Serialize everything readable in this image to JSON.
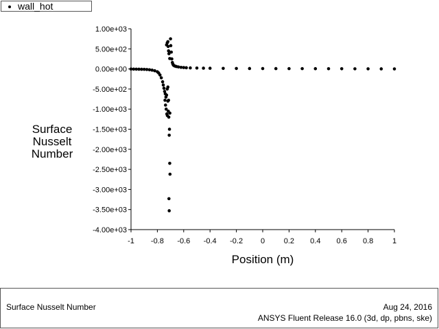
{
  "legend": {
    "label": "wall_hot"
  },
  "footer": {
    "title": "Surface Nusselt Number",
    "date": "Aug 24, 2016",
    "release": "ANSYS Fluent Release 16.0 (3d, dp, pbns, ske)"
  },
  "chart_data": {
    "type": "scatter",
    "title": "",
    "xlabel": "Position (m)",
    "ylabel_lines": [
      "Surface",
      "Nusselt",
      "Number"
    ],
    "xlim": [
      -1,
      1
    ],
    "ylim": [
      -4000,
      1000
    ],
    "xticks": [
      -1,
      -0.8,
      -0.6,
      -0.4,
      -0.2,
      0,
      0.2,
      0.4,
      0.6,
      0.8,
      1
    ],
    "xtick_labels": [
      "-1",
      "-0.8",
      "-0.6",
      "-0.4",
      "-0.2",
      "0",
      "0.2",
      "0.4",
      "0.6",
      "0.8",
      "1"
    ],
    "yticks": [
      1000,
      500,
      0,
      -500,
      -1000,
      -1500,
      -2000,
      -2500,
      -3000,
      -3500,
      -4000
    ],
    "ytick_labels": [
      "1.00e+03",
      "5.00e+02",
      "0.00e+00",
      "-5.00e+02",
      "-1.00e+03",
      "-1.50e+03",
      "-2.00e+03",
      "-2.50e+03",
      "-3.00e+03",
      "-3.50e+03",
      "-4.00e+03"
    ],
    "grid": false,
    "legend_position": "top-left",
    "series": [
      {
        "name": "wall_hot",
        "color": "#000000",
        "points": [
          [
            -1.0,
            -2
          ],
          [
            -0.98,
            -4
          ],
          [
            -0.96,
            -5
          ],
          [
            -0.94,
            -6
          ],
          [
            -0.92,
            -8
          ],
          [
            -0.9,
            -10
          ],
          [
            -0.88,
            -14
          ],
          [
            -0.86,
            -20
          ],
          [
            -0.84,
            -30
          ],
          [
            -0.82,
            -45
          ],
          [
            -0.8,
            -70
          ],
          [
            -0.79,
            -100
          ],
          [
            -0.78,
            -150
          ],
          [
            -0.77,
            -220
          ],
          [
            -0.76,
            -320
          ],
          [
            -0.755,
            -400
          ],
          [
            -0.75,
            -480
          ],
          [
            -0.745,
            -560
          ],
          [
            -0.74,
            -620
          ],
          [
            -0.735,
            -700
          ],
          [
            -0.73,
            -650
          ],
          [
            -0.725,
            -500
          ],
          [
            -0.72,
            -450
          ],
          [
            -0.742,
            -780
          ],
          [
            -0.738,
            -900
          ],
          [
            -0.733,
            -1000
          ],
          [
            -0.728,
            -1120
          ],
          [
            -0.724,
            -1160
          ],
          [
            -0.72,
            -800
          ],
          [
            -0.717,
            -1050
          ],
          [
            -0.713,
            -1200
          ],
          [
            -0.71,
            -1650
          ],
          [
            -0.708,
            -1500
          ],
          [
            -0.706,
            -2350
          ],
          [
            -0.704,
            -2620
          ],
          [
            -0.712,
            -3230
          ],
          [
            -0.71,
            -3530
          ],
          [
            -0.715,
            -780
          ],
          [
            -0.705,
            -1100
          ],
          [
            -0.73,
            600
          ],
          [
            -0.725,
            650
          ],
          [
            -0.72,
            680
          ],
          [
            -0.718,
            560
          ],
          [
            -0.715,
            450
          ],
          [
            -0.712,
            380
          ],
          [
            -0.706,
            260
          ],
          [
            -0.7,
            750
          ],
          [
            -0.698,
            580
          ],
          [
            -0.694,
            420
          ],
          [
            -0.69,
            250
          ],
          [
            -0.686,
            160
          ],
          [
            -0.682,
            120
          ],
          [
            -0.678,
            95
          ],
          [
            -0.672,
            80
          ],
          [
            -0.665,
            70
          ],
          [
            -0.655,
            60
          ],
          [
            -0.64,
            50
          ],
          [
            -0.62,
            40
          ],
          [
            -0.6,
            35
          ],
          [
            -0.58,
            30
          ],
          [
            -0.55,
            26
          ],
          [
            -0.5,
            22
          ],
          [
            -0.45,
            19
          ],
          [
            -0.4,
            17
          ],
          [
            -0.3,
            14
          ],
          [
            -0.2,
            12
          ],
          [
            -0.1,
            11
          ],
          [
            0.0,
            10
          ],
          [
            0.1,
            9
          ],
          [
            0.2,
            8
          ],
          [
            0.3,
            8
          ],
          [
            0.4,
            7
          ],
          [
            0.5,
            6
          ],
          [
            0.6,
            5
          ],
          [
            0.7,
            4
          ],
          [
            0.8,
            3
          ],
          [
            0.9,
            2
          ],
          [
            1.0,
            1
          ]
        ]
      }
    ]
  }
}
